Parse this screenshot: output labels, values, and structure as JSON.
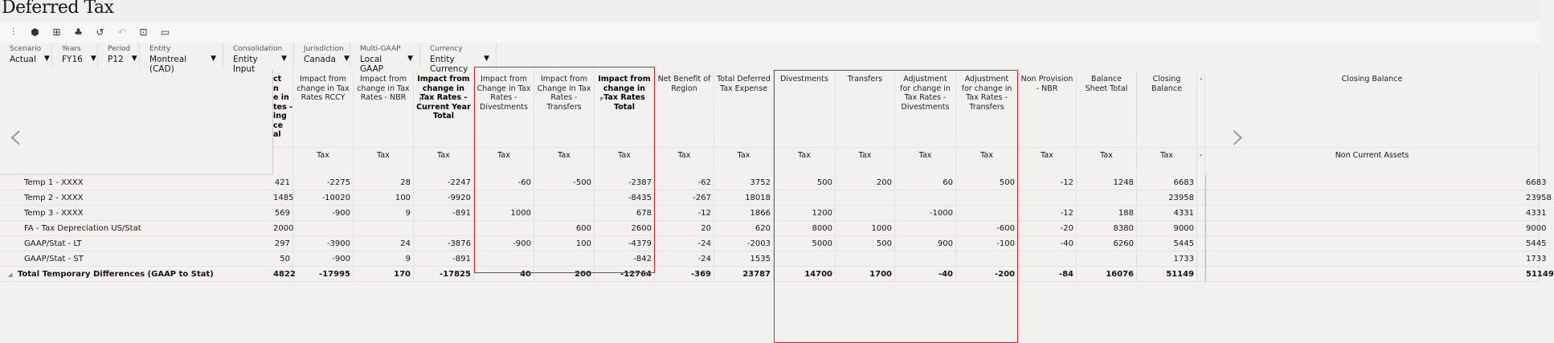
{
  "title": "Deferred Tax",
  "toolbar": [
    {
      "icon": "adjust-sliders-icon",
      "glyph": "⫶",
      "disabled": false
    },
    {
      "icon": "cube-icon",
      "glyph": "⬢",
      "disabled": false
    },
    {
      "icon": "add-comment-icon",
      "glyph": "⊞",
      "disabled": false
    },
    {
      "icon": "hierarchy-icon",
      "glyph": "♣",
      "disabled": false
    },
    {
      "icon": "history-icon",
      "glyph": "↺",
      "disabled": false
    },
    {
      "icon": "undo-icon",
      "glyph": "↶",
      "disabled": true
    },
    {
      "icon": "grid-icon",
      "glyph": "⊡",
      "disabled": false
    },
    {
      "icon": "export-icon",
      "glyph": "▭",
      "disabled": false
    }
  ],
  "pov": [
    {
      "label": "Scenario",
      "value": "Actual"
    },
    {
      "label": "Years",
      "value": "FY16"
    },
    {
      "label": "Period",
      "value": "P12"
    },
    {
      "label": "Entity",
      "value": "Montreal (CAD)"
    },
    {
      "label": "Consolidation",
      "value": "Entity Input"
    },
    {
      "label": "Jurisdiction",
      "value": "Canada"
    },
    {
      "label": "Multi-GAAP",
      "value": "Local GAAP"
    },
    {
      "label": "Currency",
      "value": "Entity Currency"
    }
  ],
  "colors": {
    "highlight": "#e0202a"
  },
  "columns": [
    {
      "label": "ct\nn\ne in\ntes -\ning\nce\nal",
      "sub": "",
      "bold": true,
      "partial": true
    },
    {
      "label": "Impact from change in Tax Rates RCCY",
      "sub": "Tax"
    },
    {
      "label": "Impact from change in Tax Rates - NBR",
      "sub": "Tax"
    },
    {
      "label": "Impact from change in Tax Rates - Current Year Total",
      "sub": "Tax",
      "bold": true,
      "collapse": true
    },
    {
      "label": "Impact from Change in Tax Rates - Divestments",
      "sub": "Tax"
    },
    {
      "label": "Impact from Change in Tax Rates - Transfers",
      "sub": "Tax"
    },
    {
      "label": "Impact from change in Tax Rates Total",
      "sub": "Tax",
      "bold": true,
      "collapse": true
    },
    {
      "label": "Net Benefit of Region",
      "sub": "Tax"
    },
    {
      "label": "Total Deferred Tax Expense",
      "sub": "Tax"
    },
    {
      "label": "Divestments",
      "sub": "Tax"
    },
    {
      "label": "Transfers",
      "sub": "Tax"
    },
    {
      "label": "Adjustment for change in Tax Rates - Divestments",
      "sub": "Tax"
    },
    {
      "label": "Adjustment for change in Tax Rates - Transfers",
      "sub": "Tax"
    },
    {
      "label": "Non Provision - NBR",
      "sub": "Tax"
    },
    {
      "label": "Balance Sheet Total",
      "sub": "Tax"
    },
    {
      "label": "Closing Balance",
      "sub": "Tax"
    },
    {
      "label": "-",
      "sub": "-"
    },
    {
      "label": "Closing Balance",
      "sub": "Non Current Assets"
    }
  ],
  "rows": [
    {
      "label": "Temp 1 - XXXX",
      "values": [
        "421",
        "-2275",
        "28",
        "-2247",
        "-60",
        "-500",
        "-2387",
        "-62",
        "3752",
        "500",
        "200",
        "60",
        "500",
        "-12",
        "1248",
        "6683",
        "",
        "6683"
      ]
    },
    {
      "label": "Temp 2 - XXXX",
      "values": [
        "1485",
        "-10020",
        "100",
        "-9920",
        "",
        "",
        "-8435",
        "-267",
        "18018",
        "",
        "",
        "",
        "",
        "",
        "",
        "23958",
        "",
        "23958"
      ]
    },
    {
      "label": "Temp 3 - XXXX",
      "values": [
        "569",
        "-900",
        "9",
        "-891",
        "1000",
        "",
        "678",
        "-12",
        "1866",
        "1200",
        "",
        "-1000",
        "",
        "-12",
        "188",
        "4331",
        "",
        "4331"
      ]
    },
    {
      "label": "FA - Tax Depreciation US/Stat",
      "values": [
        "2000",
        "",
        "",
        "",
        "",
        "600",
        "2600",
        "20",
        "620",
        "8000",
        "1000",
        "",
        "-600",
        "-20",
        "8380",
        "9000",
        "",
        "9000"
      ]
    },
    {
      "label": "GAAP/Stat - LT",
      "values": [
        "297",
        "-3900",
        "24",
        "-3876",
        "-900",
        "100",
        "-4379",
        "-24",
        "-2003",
        "5000",
        "500",
        "900",
        "-100",
        "-40",
        "6260",
        "5445",
        "",
        "5445"
      ]
    },
    {
      "label": "GAAP/Stat - ST",
      "values": [
        "50",
        "-900",
        "9",
        "-891",
        "",
        "",
        "-842",
        "-24",
        "1535",
        "",
        "",
        "",
        "",
        "",
        "",
        "1733",
        "",
        "1733"
      ]
    },
    {
      "label": "Total Temporary Differences (GAAP to Stat)",
      "bold": true,
      "expanded": true,
      "values": [
        "4822",
        "-17995",
        "170",
        "-17825",
        "40",
        "200",
        "-12764",
        "-369",
        "23787",
        "14700",
        "1700",
        "-40",
        "-200",
        "-84",
        "16076",
        "51149",
        "",
        "51149"
      ]
    }
  ]
}
